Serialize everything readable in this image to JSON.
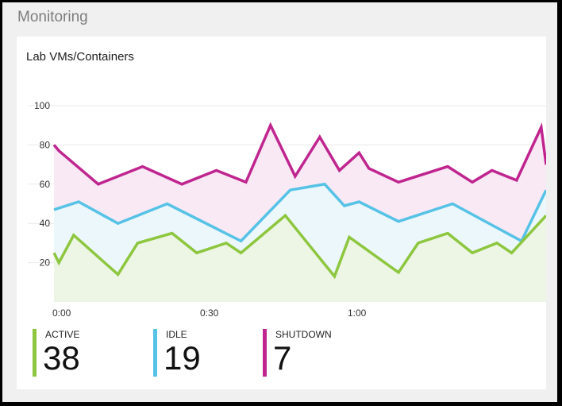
{
  "section": {
    "title": "Monitoring"
  },
  "card": {
    "title": "Lab VMs/Containers"
  },
  "colors": {
    "active": "#8dc63f",
    "idle": "#56c2e6",
    "shutdown": "#c0258f"
  },
  "stats": [
    {
      "label": "ACTIVE",
      "value": "38"
    },
    {
      "label": "IDLE",
      "value": "19"
    },
    {
      "label": "SHUTDOWN",
      "value": "7"
    }
  ],
  "chart_data": {
    "type": "area",
    "ylim": [
      0,
      100
    ],
    "yticks": [
      20,
      40,
      60,
      80,
      100
    ],
    "xlim": [
      0,
      100
    ],
    "xtick_labels": [
      {
        "x": 0,
        "label": "0:00"
      },
      {
        "x": 30,
        "label": "0:30"
      },
      {
        "x": 60,
        "label": "1:00"
      }
    ],
    "grid": "horizontal",
    "legend": "bottom",
    "series": [
      {
        "name": "SHUTDOWN",
        "x": [
          0,
          1,
          9,
          18,
          26,
          33,
          39,
          44,
          49,
          54,
          58,
          62,
          64,
          70,
          80,
          85,
          89,
          94,
          99,
          100
        ],
        "values": [
          80,
          77,
          60,
          69,
          60,
          67,
          61,
          90,
          64,
          84,
          67,
          76,
          68,
          61,
          69,
          61,
          67,
          62,
          89,
          70
        ]
      },
      {
        "name": "IDLE",
        "x": [
          0,
          5,
          13,
          23,
          38,
          48,
          55,
          59,
          62,
          70,
          81,
          95,
          100
        ],
        "values": [
          47,
          51,
          40,
          50,
          31,
          57,
          60,
          49,
          51,
          41,
          50,
          31,
          57
        ]
      },
      {
        "name": "ACTIVE",
        "x": [
          0,
          1,
          4,
          13,
          17,
          24,
          29,
          35,
          38,
          47,
          57,
          60,
          70,
          74,
          80,
          85,
          90,
          93,
          100
        ],
        "values": [
          25,
          20,
          34,
          14,
          30,
          35,
          25,
          30,
          25,
          44,
          13,
          33,
          15,
          30,
          35,
          25,
          30,
          25,
          44
        ]
      }
    ]
  }
}
